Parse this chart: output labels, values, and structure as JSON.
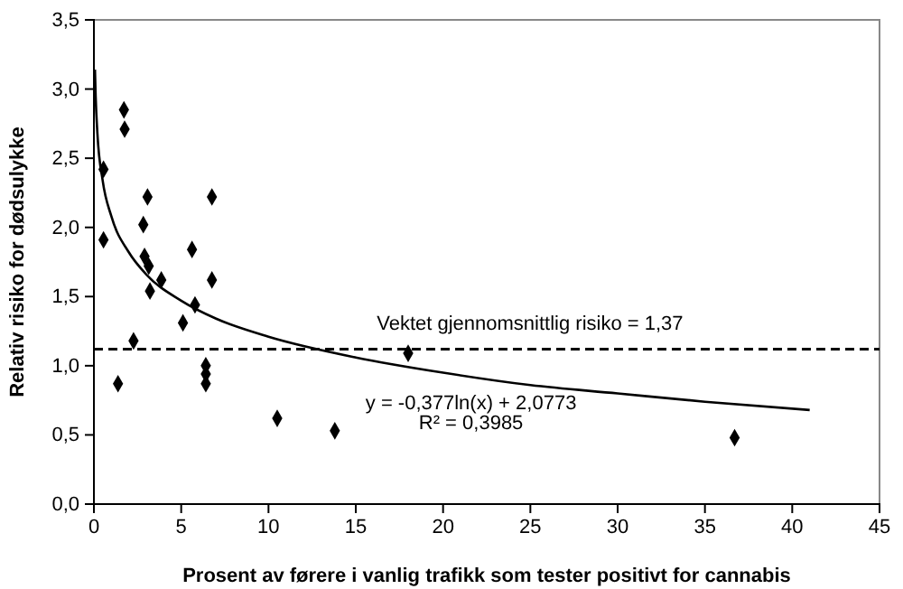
{
  "chart_data": {
    "type": "scatter",
    "xlabel": "Prosent av førere i vanlig trafikk som tester positivt for cannabis",
    "ylabel": "Relativ risiko for dødsulykke",
    "series": [
      {
        "color": "#000000",
        "marker": "diamond",
        "x": [
          0.55,
          0.55,
          1.72,
          1.76,
          1.38,
          2.27,
          3.07,
          2.83,
          2.9,
          3.14,
          3.21,
          3.86,
          5.1,
          5.62,
          5.79,
          6.76,
          6.76,
          6.41,
          6.41,
          6.41,
          10.5,
          13.8,
          18.0,
          36.7
        ],
        "values": [
          2.42,
          1.91,
          2.85,
          2.71,
          0.87,
          1.18,
          2.22,
          2.02,
          1.79,
          1.72,
          1.54,
          1.62,
          1.31,
          1.84,
          1.44,
          2.22,
          1.62,
          1.0,
          0.94,
          0.87,
          0.62,
          0.53,
          1.09,
          0.48
        ]
      },
      {
        "type": "line",
        "color": "#000000",
        "x": [
          0.06,
          0.1,
          0.2,
          0.5,
          1,
          2,
          3,
          5,
          7,
          10,
          15,
          20,
          25,
          30,
          35,
          41
        ],
        "values": [
          3.14,
          2.95,
          2.68,
          2.34,
          2.08,
          1.82,
          1.66,
          1.47,
          1.34,
          1.21,
          1.06,
          0.95,
          0.86,
          0.8,
          0.74,
          0.68
        ]
      }
    ],
    "xlim": [
      0,
      45
    ],
    "xticks": [
      0,
      5,
      10,
      15,
      20,
      25,
      30,
      35,
      40,
      45
    ],
    "ylim": [
      0,
      3.5
    ],
    "yticks": [
      {
        "value": 0,
        "label": "0,0"
      },
      {
        "value": 0.5,
        "label": "0,5"
      },
      {
        "value": 1,
        "label": "1,0"
      },
      {
        "value": 1.5,
        "label": "1,5"
      },
      {
        "value": 2,
        "label": "2,0"
      },
      {
        "value": 2.5,
        "label": "2,5"
      },
      {
        "value": 3,
        "label": "3,0"
      },
      {
        "value": 3.5,
        "label": "3,5"
      }
    ],
    "ref_lines": [
      {
        "axis": "y",
        "value": 1.12,
        "color": "#000000",
        "line_style": "dashed"
      }
    ],
    "annotations": [
      "Vektet gjennomsnittlig risiko = 1,37",
      "y = -0,377ln(x) + 2,0773",
      "R² = 0,3985"
    ],
    "grid": false
  }
}
